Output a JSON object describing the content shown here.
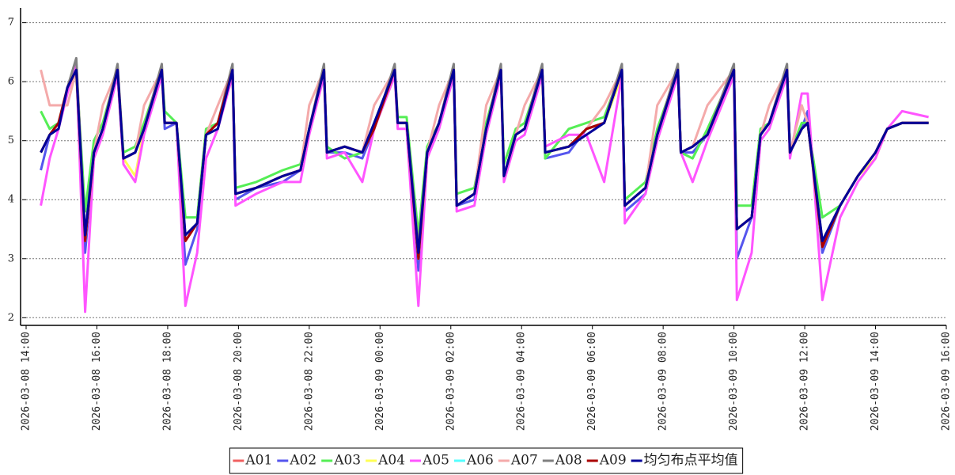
{
  "chart_data": {
    "type": "line",
    "x": [
      "2026-03-08 14:25",
      "2026-03-08 14:40",
      "2026-03-08 14:55",
      "2026-03-08 15:10",
      "2026-03-08 15:25",
      "2026-03-08 15:40",
      "2026-03-08 15:55",
      "2026-03-08 16:10",
      "2026-03-08 16:35",
      "2026-03-08 16:45",
      "2026-03-08 17:05",
      "2026-03-08 17:20",
      "2026-03-08 17:50",
      "2026-03-08 17:55",
      "2026-03-08 18:15",
      "2026-03-08 18:30",
      "2026-03-08 18:50",
      "2026-03-08 19:05",
      "2026-03-08 19:25",
      "2026-03-08 19:50",
      "2026-03-08 19:55",
      "2026-03-08 20:30",
      "2026-03-08 21:15",
      "2026-03-08 21:45",
      "2026-03-08 22:00",
      "2026-03-08 22:25",
      "2026-03-08 22:30",
      "2026-03-08 23:00",
      "2026-03-08 23:30",
      "2026-03-08 23:50",
      "2026-03-09 00:25",
      "2026-03-09 00:30",
      "2026-03-09 00:45",
      "2026-03-09 01:05",
      "2026-03-09 01:20",
      "2026-03-09 01:40",
      "2026-03-09 02:05",
      "2026-03-09 02:10",
      "2026-03-09 02:40",
      "2026-03-09 03:00",
      "2026-03-09 03:25",
      "2026-03-09 03:30",
      "2026-03-09 03:50",
      "2026-03-09 04:05",
      "2026-03-09 04:35",
      "2026-03-09 04:40",
      "2026-03-09 05:20",
      "2026-03-09 05:50",
      "2026-03-09 06:20",
      "2026-03-09 06:50",
      "2026-03-09 06:55",
      "2026-03-09 07:30",
      "2026-03-09 07:50",
      "2026-03-09 08:25",
      "2026-03-09 08:30",
      "2026-03-09 08:50",
      "2026-03-09 09:15",
      "2026-03-09 10:00",
      "2026-03-09 10:05",
      "2026-03-09 10:30",
      "2026-03-09 10:45",
      "2026-03-09 11:00",
      "2026-03-09 11:30",
      "2026-03-09 11:35",
      "2026-03-09 11:55",
      "2026-03-09 12:05",
      "2026-03-09 12:30",
      "2026-03-09 13:00",
      "2026-03-09 13:30",
      "2026-03-09 14:00",
      "2026-03-09 14:20",
      "2026-03-09 14:45",
      "2026-03-09 15:30"
    ],
    "series": [
      {
        "name": "A01",
        "color": "#f06060",
        "values": [
          4.8,
          5.1,
          5.3,
          5.9,
          6.2,
          3.3,
          4.8,
          5.2,
          6.2,
          4.7,
          4.8,
          5.2,
          6.2,
          5.3,
          5.3,
          3.3,
          3.6,
          5.1,
          5.3,
          6.2,
          4.1,
          4.2,
          4.4,
          4.5,
          5.2,
          6.2,
          4.8,
          4.9,
          4.8,
          5.2,
          6.2,
          5.3,
          5.3,
          3.0,
          4.8,
          5.3,
          6.2,
          3.9,
          4.1,
          5.2,
          6.2,
          4.4,
          5.1,
          5.2,
          6.2,
          4.8,
          4.9,
          5.2,
          5.3,
          6.2,
          3.9,
          4.2,
          5.1,
          6.2,
          4.8,
          4.9,
          5.1,
          6.2,
          3.5,
          3.7,
          5.1,
          5.3,
          6.2,
          4.8,
          5.2,
          5.3,
          3.2,
          3.9,
          4.4,
          4.8,
          5.2,
          5.3,
          5.3
        ]
      },
      {
        "name": "A02",
        "color": "#5555ee",
        "values": [
          4.5,
          5.1,
          5.3,
          5.9,
          6.3,
          3.1,
          4.8,
          5.2,
          6.2,
          4.7,
          4.8,
          5.2,
          6.2,
          5.2,
          5.3,
          2.9,
          3.5,
          5.1,
          5.3,
          6.2,
          4.0,
          4.2,
          4.3,
          4.5,
          5.2,
          6.2,
          4.8,
          4.8,
          4.7,
          5.2,
          6.2,
          5.3,
          5.3,
          2.8,
          4.8,
          5.3,
          6.2,
          3.9,
          4.0,
          5.2,
          6.2,
          4.4,
          5.1,
          5.2,
          6.2,
          4.7,
          4.8,
          5.2,
          5.3,
          6.2,
          3.8,
          4.1,
          5.1,
          6.2,
          4.8,
          4.8,
          5.1,
          6.2,
          3.0,
          3.7,
          5.1,
          5.3,
          6.2,
          4.8,
          5.2,
          5.5,
          3.1,
          3.9,
          4.4,
          4.8,
          5.2,
          5.3,
          5.3
        ]
      },
      {
        "name": "A03",
        "color": "#55ee55",
        "values": [
          5.5,
          5.2,
          5.3,
          5.9,
          6.2,
          3.8,
          5.0,
          5.3,
          6.2,
          4.8,
          4.9,
          5.3,
          6.2,
          5.5,
          5.3,
          3.7,
          3.7,
          5.2,
          5.3,
          6.2,
          4.2,
          4.3,
          4.5,
          4.6,
          5.2,
          6.2,
          4.9,
          4.7,
          4.8,
          5.3,
          6.2,
          5.4,
          5.4,
          3.4,
          4.9,
          5.3,
          6.2,
          4.1,
          4.2,
          5.3,
          6.2,
          4.6,
          5.2,
          5.3,
          6.2,
          4.7,
          5.2,
          5.3,
          5.4,
          6.2,
          4.0,
          4.3,
          5.2,
          6.2,
          4.8,
          4.7,
          5.2,
          6.2,
          3.9,
          3.9,
          5.2,
          5.3,
          6.2,
          4.8,
          5.3,
          5.3,
          3.7,
          3.9,
          4.4,
          4.8,
          5.2,
          5.3,
          5.3
        ]
      },
      {
        "name": "A04",
        "color": "#ffff55",
        "values": [
          4.8,
          5.1,
          5.3,
          5.9,
          6.1,
          3.3,
          4.8,
          5.2,
          6.1,
          4.7,
          4.4,
          5.2,
          6.1,
          5.3,
          5.3,
          3.3,
          3.6,
          5.1,
          5.3,
          6.1,
          4.1,
          4.2,
          4.4,
          4.5,
          5.2,
          6.1,
          4.8,
          4.9,
          4.8,
          5.2,
          6.1,
          5.3,
          5.3,
          3.0,
          4.8,
          5.3,
          6.1,
          3.9,
          4.1,
          5.2,
          6.1,
          4.4,
          5.1,
          5.2,
          6.1,
          4.8,
          4.9,
          5.2,
          5.3,
          6.1,
          3.9,
          4.2,
          5.1,
          6.1,
          4.8,
          4.9,
          5.1,
          6.1,
          3.5,
          3.7,
          5.1,
          5.3,
          6.1,
          4.8,
          5.2,
          5.3,
          3.2,
          3.9,
          4.4,
          4.7,
          5.2,
          5.3,
          5.3
        ]
      },
      {
        "name": "A05",
        "color": "#ff55ff",
        "values": [
          3.9,
          4.7,
          5.2,
          5.8,
          6.3,
          2.1,
          4.7,
          5.1,
          6.1,
          4.6,
          4.3,
          5.1,
          6.1,
          5.3,
          5.3,
          2.2,
          3.1,
          4.7,
          5.2,
          6.1,
          3.9,
          4.1,
          4.3,
          4.3,
          5.1,
          6.1,
          4.7,
          4.8,
          4.3,
          5.2,
          6.1,
          5.2,
          5.2,
          2.2,
          4.7,
          5.2,
          6.1,
          3.8,
          3.9,
          5.1,
          6.1,
          4.3,
          5.0,
          5.1,
          6.1,
          4.9,
          5.1,
          5.1,
          4.3,
          6.1,
          3.6,
          4.1,
          5.0,
          6.1,
          4.8,
          4.3,
          5.0,
          6.1,
          2.3,
          3.1,
          5.0,
          5.2,
          6.1,
          4.7,
          5.8,
          5.8,
          2.3,
          3.7,
          4.3,
          4.7,
          5.2,
          5.5,
          5.4
        ]
      },
      {
        "name": "A06",
        "color": "#55ffff",
        "values": [
          4.8,
          5.1,
          5.3,
          5.9,
          6.2,
          3.3,
          4.8,
          5.2,
          6.2,
          4.7,
          4.8,
          5.2,
          6.2,
          5.3,
          5.3,
          3.3,
          3.6,
          5.1,
          5.3,
          6.2,
          4.1,
          4.2,
          4.4,
          4.5,
          5.2,
          6.2,
          4.8,
          4.9,
          4.8,
          5.2,
          6.2,
          5.3,
          5.3,
          3.0,
          4.8,
          5.3,
          6.2,
          3.9,
          4.1,
          5.2,
          6.2,
          4.4,
          5.1,
          5.2,
          6.2,
          4.8,
          4.9,
          5.2,
          5.3,
          6.2,
          3.9,
          4.2,
          5.1,
          6.2,
          4.8,
          4.9,
          5.1,
          6.2,
          3.5,
          3.7,
          5.1,
          5.3,
          6.2,
          4.8,
          5.2,
          5.3,
          3.2,
          3.9,
          4.4,
          4.8,
          5.2,
          5.3,
          5.3
        ]
      },
      {
        "name": "A07",
        "color": "#f4aaaa",
        "values": [
          6.2,
          5.6,
          5.6,
          5.6,
          6.2,
          3.3,
          4.8,
          5.6,
          6.2,
          4.7,
          4.8,
          5.6,
          6.2,
          5.3,
          5.3,
          3.3,
          3.6,
          5.1,
          5.6,
          6.2,
          4.1,
          4.2,
          4.4,
          4.5,
          5.6,
          6.2,
          4.8,
          4.9,
          4.8,
          5.6,
          6.2,
          5.3,
          5.3,
          3.0,
          4.8,
          5.6,
          6.2,
          3.9,
          4.1,
          5.6,
          6.2,
          4.4,
          5.1,
          5.6,
          6.2,
          4.8,
          4.9,
          5.2,
          5.6,
          6.2,
          3.9,
          4.2,
          5.6,
          6.2,
          4.8,
          4.9,
          5.6,
          6.2,
          3.5,
          3.7,
          5.1,
          5.6,
          6.2,
          4.8,
          5.6,
          5.3,
          3.2,
          3.9,
          4.4,
          4.8,
          5.2,
          5.3,
          5.3
        ]
      },
      {
        "name": "A08",
        "color": "#808080",
        "values": [
          4.8,
          5.1,
          5.3,
          5.9,
          6.4,
          3.4,
          4.8,
          5.2,
          6.3,
          4.7,
          4.8,
          5.2,
          6.3,
          5.3,
          5.3,
          3.4,
          3.6,
          5.1,
          5.3,
          6.3,
          4.1,
          4.2,
          4.4,
          4.5,
          5.2,
          6.3,
          4.8,
          4.9,
          4.8,
          5.2,
          6.3,
          5.3,
          5.3,
          3.2,
          4.8,
          5.3,
          6.3,
          3.9,
          4.1,
          5.2,
          6.3,
          4.4,
          5.1,
          5.2,
          6.3,
          4.8,
          4.9,
          5.2,
          5.3,
          6.3,
          3.9,
          4.2,
          5.1,
          6.3,
          4.8,
          4.9,
          5.1,
          6.3,
          3.5,
          3.7,
          5.1,
          5.3,
          6.3,
          4.8,
          5.2,
          5.3,
          3.3,
          3.9,
          4.4,
          4.8,
          5.2,
          5.3,
          5.3
        ]
      },
      {
        "name": "A09",
        "color": "#aa0000",
        "values": [
          4.8,
          5.1,
          5.3,
          5.9,
          6.2,
          3.3,
          4.8,
          5.2,
          6.2,
          4.7,
          4.8,
          5.2,
          6.2,
          5.3,
          5.3,
          3.3,
          3.6,
          5.1,
          5.3,
          6.2,
          4.1,
          4.2,
          4.4,
          4.5,
          5.2,
          6.2,
          4.8,
          4.9,
          4.8,
          5.2,
          6.2,
          5.3,
          5.3,
          3.0,
          4.8,
          5.3,
          6.2,
          3.9,
          4.1,
          5.2,
          6.2,
          4.4,
          5.1,
          5.2,
          6.2,
          4.8,
          4.9,
          5.2,
          5.3,
          6.2,
          3.9,
          4.2,
          5.1,
          6.2,
          4.8,
          4.9,
          5.1,
          6.2,
          3.5,
          3.7,
          5.1,
          5.3,
          6.2,
          4.8,
          5.2,
          5.3,
          3.2,
          3.9,
          4.4,
          4.8,
          5.2,
          5.3,
          5.3
        ]
      },
      {
        "name": "均匀布点平均值",
        "color": "#000099",
        "values": [
          4.8,
          5.1,
          5.2,
          5.9,
          6.2,
          3.4,
          4.8,
          5.2,
          6.2,
          4.7,
          4.8,
          5.2,
          6.2,
          5.3,
          5.3,
          3.4,
          3.6,
          5.1,
          5.2,
          6.2,
          4.1,
          4.2,
          4.4,
          4.5,
          5.2,
          6.2,
          4.8,
          4.9,
          4.8,
          5.3,
          6.2,
          5.3,
          5.3,
          3.1,
          4.8,
          5.3,
          6.2,
          3.9,
          4.1,
          5.2,
          6.2,
          4.4,
          5.1,
          5.2,
          6.2,
          4.8,
          4.9,
          5.1,
          5.3,
          6.2,
          3.9,
          4.2,
          5.1,
          6.2,
          4.8,
          4.9,
          5.1,
          6.2,
          3.5,
          3.7,
          5.1,
          5.3,
          6.2,
          4.8,
          5.2,
          5.3,
          3.3,
          3.9,
          4.4,
          4.8,
          5.2,
          5.3,
          5.3
        ]
      }
    ],
    "xlim": [
      "2026-03-08 14:00",
      "2026-03-09 16:00"
    ],
    "xticks": [
      "2026-03-08 14:00",
      "2026-03-08 16:00",
      "2026-03-08 18:00",
      "2026-03-08 20:00",
      "2026-03-08 22:00",
      "2026-03-09 00:00",
      "2026-03-09 02:00",
      "2026-03-09 04:00",
      "2026-03-09 06:00",
      "2026-03-09 08:00",
      "2026-03-09 10:00",
      "2026-03-09 12:00",
      "2026-03-09 14:00",
      "2026-03-09 16:00"
    ],
    "ylim": [
      1.87,
      7.25
    ],
    "yticks": [
      2,
      3,
      4,
      5,
      6,
      7
    ],
    "grid": true,
    "legend": "bottom"
  }
}
